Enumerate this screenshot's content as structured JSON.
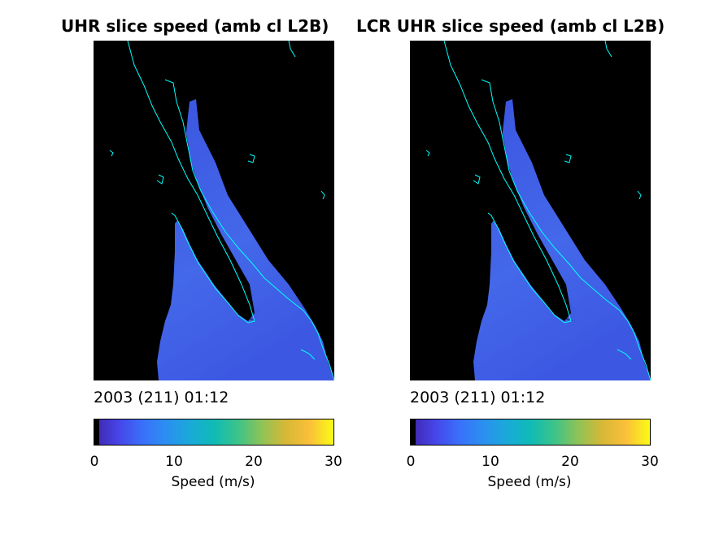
{
  "panels": [
    {
      "title": "UHR slice speed (amb cl L2B)",
      "timestamp": "2003 (211) 01:12",
      "colorbar_label": "Speed (m/s)"
    },
    {
      "title": "LCR UHR slice speed (amb cl L2B)",
      "timestamp": "2003 (211) 01:12",
      "colorbar_label": "Speed (m/s)"
    }
  ],
  "colorbar_ticks": [
    "0",
    "10",
    "20",
    "30"
  ],
  "colors": {
    "background": "#000000",
    "coastline": "#00ffff",
    "speed_fill": "#3d5fe6",
    "speed_fill_light": "#4d7cf0"
  },
  "chart_data": [
    {
      "type": "heatmap",
      "title": "UHR slice speed (amb cl L2B)",
      "colorbar": {
        "label": "Speed (m/s)",
        "range": [
          0,
          30
        ],
        "ticks": [
          0,
          10,
          20,
          30
        ],
        "colormap": "parula"
      },
      "timestamp": "2003 (211) 01:12",
      "dominant_speed_range_ms": [
        4,
        8
      ]
    },
    {
      "type": "heatmap",
      "title": "LCR UHR slice speed (amb cl L2B)",
      "colorbar": {
        "label": "Speed (m/s)",
        "range": [
          0,
          30
        ],
        "ticks": [
          0,
          10,
          20,
          30
        ],
        "colormap": "parula"
      },
      "timestamp": "2003 (211) 01:12",
      "dominant_speed_range_ms": [
        4,
        8
      ]
    }
  ]
}
